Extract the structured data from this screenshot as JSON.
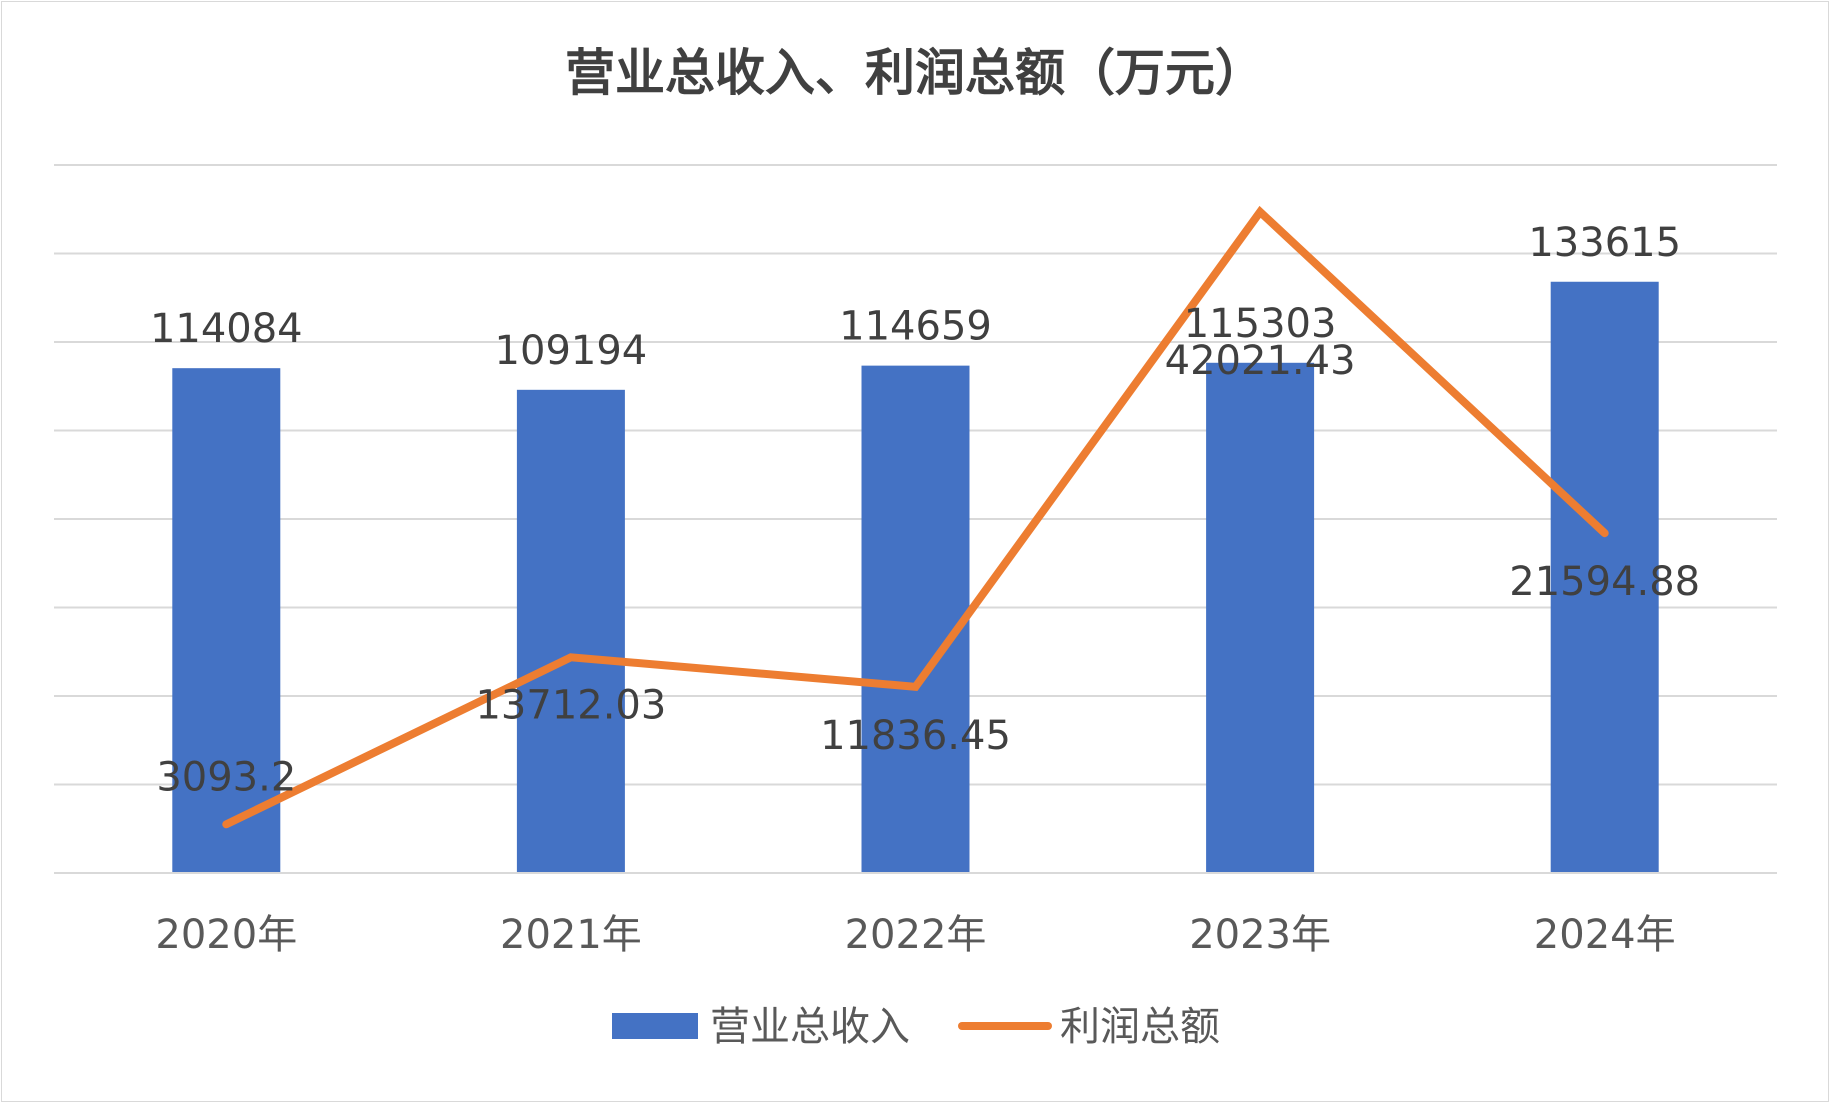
{
  "chart_data": {
    "type": "bar",
    "title": "营业总收入、利润总额（万元）",
    "categories": [
      "2020年",
      "2021年",
      "2022年",
      "2023年",
      "2024年"
    ],
    "series": [
      {
        "name": "营业总收入",
        "type": "bar",
        "values": [
          114084,
          109194,
          114659,
          115303,
          133615
        ],
        "labels": [
          "114084",
          "109194",
          "114659",
          "115303",
          "133615"
        ],
        "color": "#4472C4"
      },
      {
        "name": "利润总额",
        "type": "line",
        "values": [
          3093.2,
          13712.03,
          11836.45,
          42021.43,
          21594.88
        ],
        "labels": [
          "3093.2",
          "13712.03",
          "11836.45",
          "42021.43",
          "21594.88"
        ],
        "color": "#ED7D31"
      }
    ],
    "xlabel": "",
    "ylabel": "",
    "ylim": [
      0,
      160000
    ],
    "secondary_ylim": [
      0,
      45000
    ],
    "y_axis_labels_shown": false,
    "grid": true,
    "legend_position": "bottom"
  }
}
